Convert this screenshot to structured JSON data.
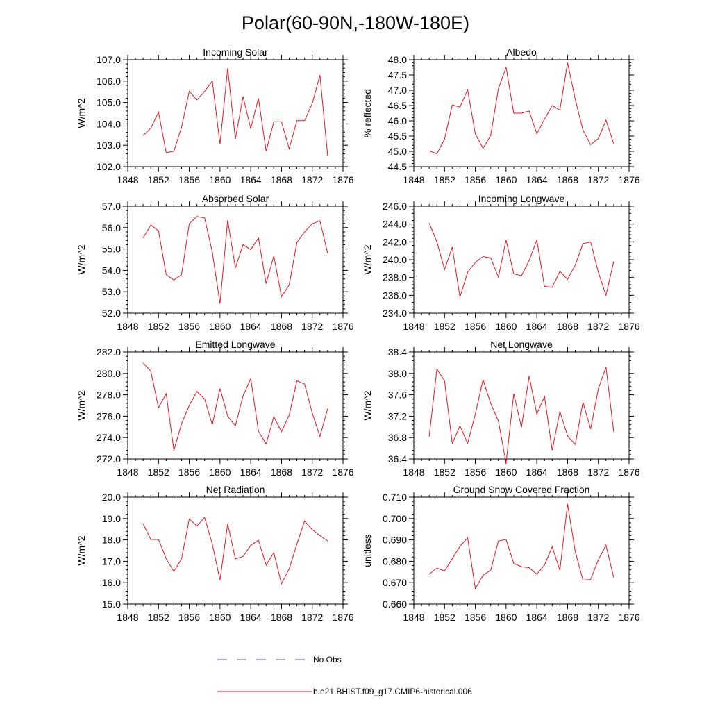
{
  "figure_title": "Polar(60-90N,-180W-180E)",
  "legend": [
    {
      "label": "No Obs",
      "color": "#4f4fc8",
      "style": "dashed"
    },
    {
      "label": "b.e21.BHIST.f09_g17.CMIP6-historical.006",
      "color": "#e8141d",
      "style": "solid"
    }
  ],
  "chart_data": [
    {
      "type": "line",
      "title": "Incoming Solar",
      "ylabel": "W/m^2",
      "xlim": [
        1848,
        1876
      ],
      "ylim": [
        102.0,
        107.0
      ],
      "x_ticks": [
        "1848",
        "1852",
        "1856",
        "1860",
        "1864",
        "1868",
        "1872",
        "1876"
      ],
      "y_ticks": [
        "102.0",
        "103.0",
        "104.0",
        "105.0",
        "106.0",
        "107.0"
      ],
      "series": [
        {
          "name": "b.e21.BHIST.f09_g17.CMIP6-historical.006",
          "x": [
            1850,
            1851,
            1852,
            1853,
            1854,
            1855,
            1856,
            1857,
            1858,
            1859,
            1860,
            1861,
            1862,
            1863,
            1864,
            1865,
            1866,
            1867,
            1868,
            1869,
            1870,
            1871,
            1872,
            1873,
            1874
          ],
          "values": [
            103.45,
            103.8,
            104.55,
            102.65,
            102.72,
            103.85,
            105.52,
            105.12,
            105.52,
            106.0,
            103.05,
            106.6,
            103.3,
            105.28,
            103.78,
            105.2,
            102.73,
            104.1,
            104.1,
            102.83,
            104.15,
            104.15,
            104.95,
            106.28,
            102.52
          ]
        }
      ]
    },
    {
      "type": "line",
      "title": "Albedo",
      "ylabel": "% reflected",
      "xlim": [
        1848,
        1876
      ],
      "ylim": [
        44.5,
        48.0
      ],
      "x_ticks": [
        "1848",
        "1852",
        "1856",
        "1860",
        "1864",
        "1868",
        "1872",
        "1876"
      ],
      "y_ticks": [
        "44.5",
        "45.0",
        "45.5",
        "46.0",
        "46.5",
        "47.0",
        "47.5",
        "48.0"
      ],
      "series": [
        {
          "name": "b.e21.BHIST.f09_g17.CMIP6-historical.006",
          "x": [
            1850,
            1851,
            1852,
            1853,
            1854,
            1855,
            1856,
            1857,
            1858,
            1859,
            1860,
            1861,
            1862,
            1863,
            1864,
            1865,
            1866,
            1867,
            1868,
            1869,
            1870,
            1871,
            1872,
            1873,
            1874
          ],
          "values": [
            45.02,
            44.92,
            45.4,
            46.52,
            46.45,
            47.02,
            45.57,
            45.1,
            45.52,
            47.05,
            47.75,
            46.25,
            46.25,
            46.32,
            45.58,
            46.05,
            46.5,
            46.35,
            47.9,
            46.7,
            45.7,
            45.22,
            45.42,
            46.02,
            45.25
          ]
        }
      ]
    },
    {
      "type": "line",
      "title": "Absorbed Solar",
      "ylabel": "W/m^2",
      "xlim": [
        1848,
        1876
      ],
      "ylim": [
        52.0,
        57.0
      ],
      "x_ticks": [
        "1848",
        "1852",
        "1856",
        "1860",
        "1864",
        "1868",
        "1872",
        "1876"
      ],
      "y_ticks": [
        "52.0",
        "53.0",
        "54.0",
        "55.0",
        "56.0",
        "57.0"
      ],
      "series": [
        {
          "name": "b.e21.BHIST.f09_g17.CMIP6-historical.006",
          "x": [
            1850,
            1851,
            1852,
            1853,
            1854,
            1855,
            1856,
            1857,
            1858,
            1859,
            1860,
            1861,
            1862,
            1863,
            1864,
            1865,
            1866,
            1867,
            1868,
            1869,
            1870,
            1871,
            1872,
            1873,
            1874
          ],
          "values": [
            55.52,
            56.12,
            55.85,
            53.8,
            53.55,
            53.8,
            56.18,
            56.52,
            56.45,
            54.85,
            52.45,
            56.35,
            54.12,
            55.2,
            54.97,
            55.52,
            53.38,
            54.68,
            52.77,
            53.32,
            55.3,
            55.8,
            56.18,
            56.32,
            54.8
          ]
        }
      ]
    },
    {
      "type": "line",
      "title": "Incoming Longwave",
      "ylabel": "W/m^2",
      "xlim": [
        1848,
        1876
      ],
      "ylim": [
        234.0,
        246.0
      ],
      "x_ticks": [
        "1848",
        "1852",
        "1856",
        "1860",
        "1864",
        "1868",
        "1872",
        "1876"
      ],
      "y_ticks": [
        "234.0",
        "236.0",
        "238.0",
        "240.0",
        "242.0",
        "244.0",
        "246.0"
      ],
      "series": [
        {
          "name": "b.e21.BHIST.f09_g17.CMIP6-historical.006",
          "x": [
            1850,
            1851,
            1852,
            1853,
            1854,
            1855,
            1856,
            1857,
            1858,
            1859,
            1860,
            1861,
            1862,
            1863,
            1864,
            1865,
            1866,
            1867,
            1868,
            1869,
            1870,
            1871,
            1872,
            1873,
            1874
          ],
          "values": [
            244.1,
            242.0,
            238.9,
            241.4,
            235.8,
            238.6,
            239.7,
            240.35,
            240.2,
            238.05,
            242.2,
            238.4,
            238.2,
            239.9,
            242.2,
            237.0,
            236.9,
            238.7,
            237.8,
            239.4,
            241.8,
            242.0,
            238.6,
            236.0,
            239.8
          ]
        }
      ]
    },
    {
      "type": "line",
      "title": "Emitted Longwave",
      "ylabel": "W/m^2",
      "xlim": [
        1848,
        1876
      ],
      "ylim": [
        272.0,
        282.0
      ],
      "x_ticks": [
        "1848",
        "1852",
        "1856",
        "1860",
        "1864",
        "1868",
        "1872",
        "1876"
      ],
      "y_ticks": [
        "272.0",
        "274.0",
        "276.0",
        "278.0",
        "280.0",
        "282.0"
      ],
      "series": [
        {
          "name": "b.e21.BHIST.f09_g17.CMIP6-historical.006",
          "x": [
            1850,
            1851,
            1852,
            1853,
            1854,
            1855,
            1856,
            1857,
            1858,
            1859,
            1860,
            1861,
            1862,
            1863,
            1864,
            1865,
            1866,
            1867,
            1868,
            1869,
            1870,
            1871,
            1872,
            1873,
            1874
          ],
          "values": [
            281.0,
            280.2,
            276.8,
            278.1,
            272.8,
            275.3,
            277.0,
            278.3,
            277.6,
            275.2,
            278.6,
            276.0,
            275.1,
            277.9,
            279.5,
            274.6,
            273.4,
            275.95,
            274.55,
            276.1,
            279.3,
            279.0,
            276.3,
            274.1,
            276.7
          ]
        }
      ]
    },
    {
      "type": "line",
      "title": "Net Longwave",
      "ylabel": "W/m^2",
      "xlim": [
        1848,
        1876
      ],
      "ylim": [
        36.4,
        38.4
      ],
      "x_ticks": [
        "1848",
        "1852",
        "1856",
        "1860",
        "1864",
        "1868",
        "1872",
        "1876"
      ],
      "y_ticks": [
        "36.4",
        "36.8",
        "37.2",
        "37.6",
        "38.0",
        "38.4"
      ],
      "series": [
        {
          "name": "b.e21.BHIST.f09_g17.CMIP6-historical.006",
          "x": [
            1850,
            1851,
            1852,
            1853,
            1854,
            1855,
            1856,
            1857,
            1858,
            1859,
            1860,
            1861,
            1862,
            1863,
            1864,
            1865,
            1866,
            1867,
            1868,
            1869,
            1870,
            1871,
            1872,
            1873,
            1874
          ],
          "values": [
            36.82,
            38.08,
            37.86,
            36.69,
            37.02,
            36.69,
            37.24,
            37.88,
            37.44,
            37.11,
            36.32,
            37.62,
            36.99,
            37.95,
            37.24,
            37.57,
            36.56,
            37.29,
            36.83,
            36.67,
            37.46,
            36.96,
            37.71,
            38.12,
            36.91
          ]
        }
      ]
    },
    {
      "type": "line",
      "title": "Net Radiation",
      "ylabel": "W/m^2",
      "xlim": [
        1848,
        1876
      ],
      "ylim": [
        15.0,
        20.0
      ],
      "x_ticks": [
        "1848",
        "1852",
        "1856",
        "1860",
        "1864",
        "1868",
        "1872",
        "1876"
      ],
      "y_ticks": [
        "15.0",
        "16.0",
        "17.0",
        "18.0",
        "19.0",
        "20.0"
      ],
      "series": [
        {
          "name": "b.e21.BHIST.f09_g17.CMIP6-historical.006",
          "x": [
            1850,
            1851,
            1852,
            1853,
            1854,
            1855,
            1856,
            1857,
            1858,
            1859,
            1860,
            1861,
            1862,
            1863,
            1864,
            1865,
            1866,
            1867,
            1868,
            1869,
            1870,
            1871,
            1872,
            1873,
            1874
          ],
          "values": [
            18.75,
            18.02,
            18.02,
            17.12,
            16.52,
            17.12,
            18.98,
            18.65,
            19.05,
            17.8,
            16.12,
            18.75,
            17.12,
            17.22,
            17.75,
            17.98,
            16.82,
            17.4,
            15.95,
            16.65,
            17.8,
            18.88,
            18.48,
            18.2,
            17.95
          ]
        }
      ]
    },
    {
      "type": "line",
      "title": "Ground Snow Covered Fraction",
      "ylabel": "unitless",
      "xlim": [
        1848,
        1876
      ],
      "ylim": [
        0.66,
        0.71
      ],
      "x_ticks": [
        "1848",
        "1852",
        "1856",
        "1860",
        "1864",
        "1868",
        "1872",
        "1876"
      ],
      "y_ticks": [
        "0.660",
        "0.670",
        "0.680",
        "0.690",
        "0.700",
        "0.710"
      ],
      "series": [
        {
          "name": "b.e21.BHIST.f09_g17.CMIP6-historical.006",
          "x": [
            1850,
            1851,
            1852,
            1853,
            1854,
            1855,
            1856,
            1857,
            1858,
            1859,
            1860,
            1861,
            1862,
            1863,
            1864,
            1865,
            1866,
            1867,
            1868,
            1869,
            1870,
            1871,
            1872,
            1873,
            1874
          ],
          "values": [
            0.674,
            0.6768,
            0.6755,
            0.6812,
            0.687,
            0.691,
            0.6672,
            0.6735,
            0.6758,
            0.6895,
            0.6902,
            0.679,
            0.6775,
            0.677,
            0.674,
            0.6782,
            0.6868,
            0.6758,
            0.7068,
            0.6845,
            0.6712,
            0.6715,
            0.6807,
            0.6875,
            0.6725
          ]
        }
      ]
    }
  ]
}
